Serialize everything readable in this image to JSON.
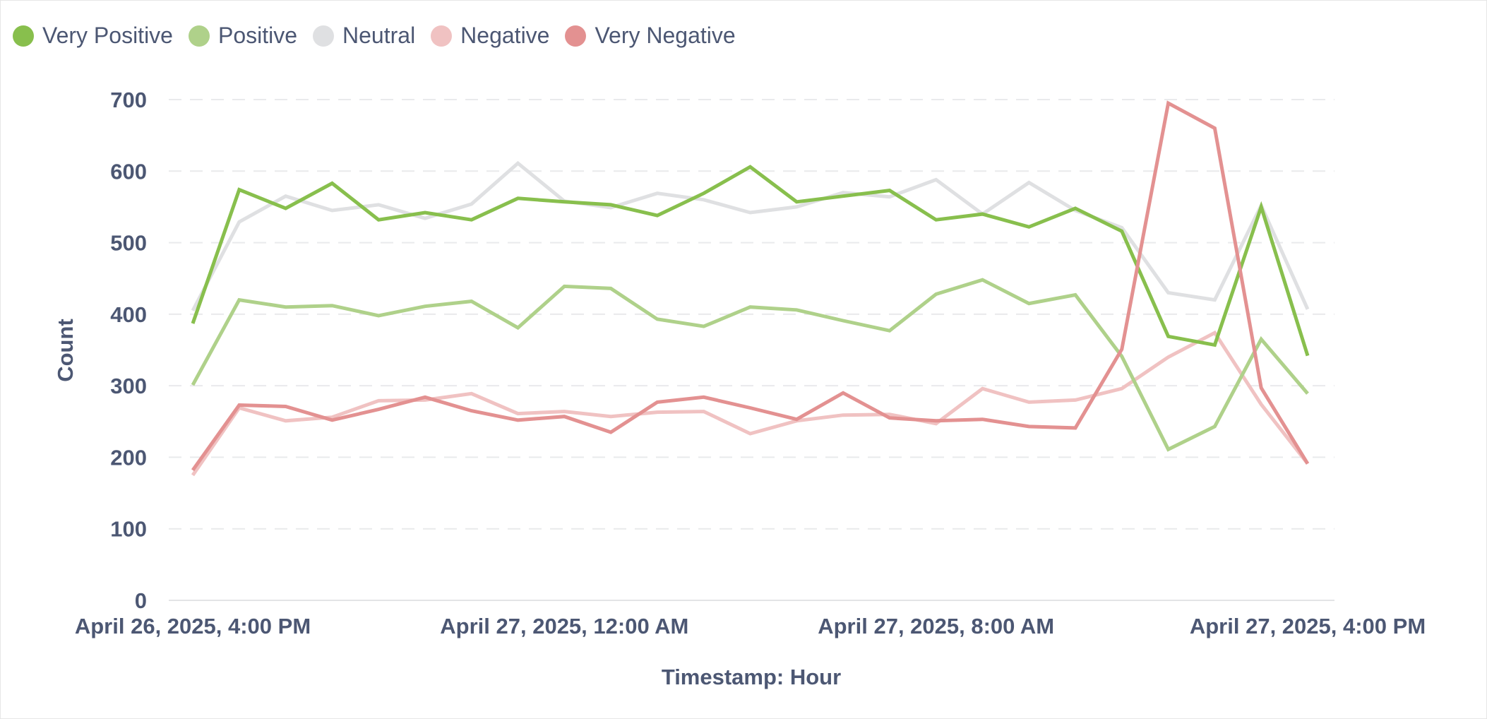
{
  "chart_data": {
    "type": "line",
    "title": "",
    "xlabel": "Timestamp: Hour",
    "ylabel": "Count",
    "ylim": [
      0,
      700
    ],
    "yticks": [
      0,
      100,
      200,
      300,
      400,
      500,
      600,
      700
    ],
    "grid": "horizontal dashed",
    "legend_position": "top-left",
    "x": [
      "April 26, 2025, 4:00 PM",
      "April 26, 2025, 5:00 PM",
      "April 26, 2025, 6:00 PM",
      "April 26, 2025, 7:00 PM",
      "April 26, 2025, 8:00 PM",
      "April 26, 2025, 9:00 PM",
      "April 26, 2025, 10:00 PM",
      "April 26, 2025, 11:00 PM",
      "April 27, 2025, 12:00 AM",
      "April 27, 2025, 1:00 AM",
      "April 27, 2025, 2:00 AM",
      "April 27, 2025, 3:00 AM",
      "April 27, 2025, 4:00 AM",
      "April 27, 2025, 5:00 AM",
      "April 27, 2025, 6:00 AM",
      "April 27, 2025, 7:00 AM",
      "April 27, 2025, 8:00 AM",
      "April 27, 2025, 9:00 AM",
      "April 27, 2025, 10:00 AM",
      "April 27, 2025, 11:00 AM",
      "April 27, 2025, 12:00 PM",
      "April 27, 2025, 1:00 PM",
      "April 27, 2025, 2:00 PM",
      "April 27, 2025, 3:00 PM",
      "April 27, 2025, 4:00 PM"
    ],
    "xtick_labels": [
      "April 26, 2025, 4:00 PM",
      "April 27, 2025, 12:00 AM",
      "April 27, 2025, 8:00 AM",
      "April 27, 2025, 4:00 PM"
    ],
    "series": [
      {
        "name": "Very Positive",
        "color": "#88bf4d",
        "values": [
          387,
          574,
          548,
          583,
          532,
          542,
          532,
          562,
          557,
          553,
          538,
          569,
          606,
          557,
          565,
          573,
          532,
          540,
          522,
          548,
          516,
          369,
          357,
          550,
          342
        ]
      },
      {
        "name": "Positive",
        "color": "#afd18a",
        "values": [
          301,
          420,
          410,
          412,
          398,
          411,
          418,
          381,
          439,
          436,
          393,
          383,
          410,
          406,
          391,
          377,
          428,
          448,
          415,
          427,
          341,
          211,
          243,
          365,
          289
        ]
      },
      {
        "name": "Neutral",
        "color": "#dfe0e2",
        "values": [
          405,
          529,
          565,
          545,
          553,
          534,
          554,
          611,
          558,
          549,
          569,
          560,
          542,
          550,
          570,
          564,
          588,
          540,
          584,
          545,
          521,
          430,
          420,
          552,
          407
        ]
      },
      {
        "name": "Negative",
        "color": "#f0c2c2",
        "values": [
          175,
          269,
          251,
          256,
          279,
          280,
          289,
          261,
          264,
          257,
          263,
          264,
          233,
          251,
          259,
          260,
          247,
          296,
          277,
          280,
          296,
          340,
          374,
          274,
          191
        ]
      },
      {
        "name": "Very Negative",
        "color": "#e39191",
        "values": [
          182,
          273,
          271,
          252,
          267,
          284,
          265,
          252,
          257,
          235,
          277,
          284,
          269,
          253,
          290,
          255,
          251,
          253,
          243,
          241,
          351,
          695,
          660,
          297,
          191
        ]
      }
    ]
  }
}
